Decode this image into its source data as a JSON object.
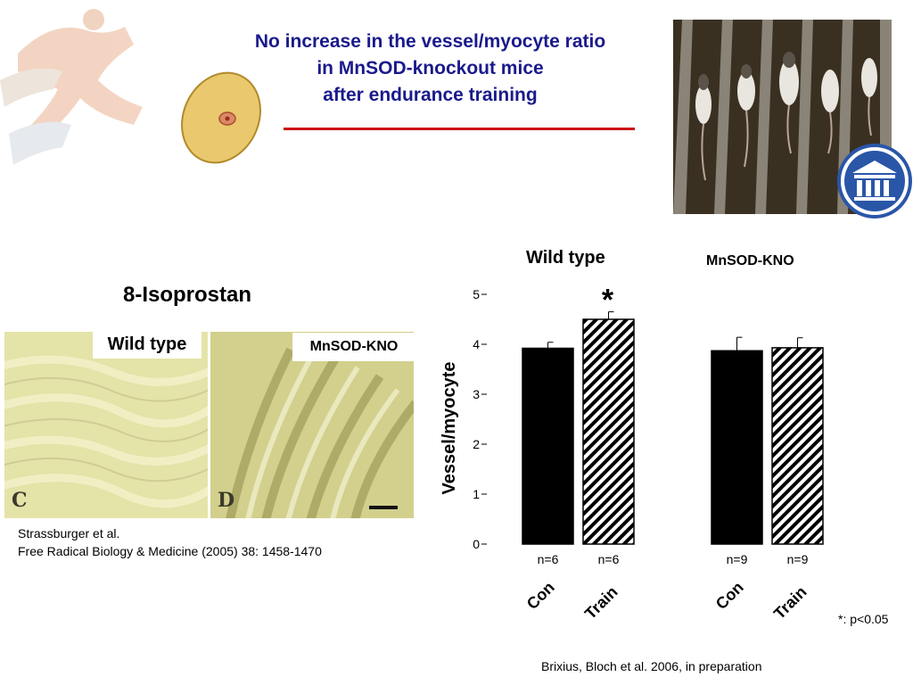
{
  "title": {
    "line1": "No increase in the vessel/myocyte ratio",
    "line2": "in MnSOD-knockout mice",
    "line3": "after endurance training"
  },
  "histology": {
    "heading": "8-Isoprostan",
    "left_label": "Wild type",
    "right_label": "MnSOD-KNO",
    "panel_c": "C",
    "panel_d": "D"
  },
  "reference_left": {
    "line1": "Strassburger et al.",
    "line2": "Free Radical Biology & Medicine (2005) 38: 1458-1470"
  },
  "reference_bottom": "Brixius, Bloch et al. 2006, in preparation",
  "significance_note": "*: p<0.05",
  "chart_data": {
    "type": "bar",
    "ylabel": "Vessel/myocyte",
    "ylim": [
      0,
      5
    ],
    "yticks": [
      "0",
      "1",
      "2",
      "3",
      "4",
      "5"
    ],
    "groups": [
      {
        "name": "Wild type",
        "bars": [
          {
            "category": "Con",
            "value": 3.92,
            "error": 0.12,
            "n": "n=6",
            "pattern": "solid",
            "star": ""
          },
          {
            "category": "Train",
            "value": 4.5,
            "error": 0.15,
            "n": "n=6",
            "pattern": "hatched",
            "star": "*"
          }
        ]
      },
      {
        "name": "MnSOD-KNO",
        "bars": [
          {
            "category": "Con",
            "value": 3.87,
            "error": 0.27,
            "n": "n=9",
            "pattern": "solid",
            "star": ""
          },
          {
            "category": "Train",
            "value": 3.93,
            "error": 0.2,
            "n": "n=9",
            "pattern": "hatched",
            "star": ""
          }
        ]
      }
    ],
    "colors": {
      "bar": "#000000",
      "hatch": "#000000",
      "axis": "#000000"
    }
  }
}
